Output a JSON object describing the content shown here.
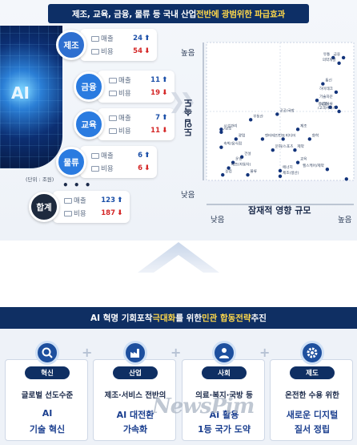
{
  "header": {
    "prefix": "제조, 교육, 금융, 물류 등 국내 산업 ",
    "highlight": "전반에 광범위한 파급효과"
  },
  "ai_image": {
    "label": "AI"
  },
  "colors": {
    "navy": "#0d2f66",
    "accent_yellow": "#ffd84a",
    "up": "#1b4fa8",
    "down": "#d42626"
  },
  "labels": {
    "sales": "매출",
    "cost": "비용"
  },
  "categories": [
    {
      "name": "제조",
      "color": "#2e6fd0",
      "sales": "24",
      "sales_dir": "⬆",
      "cost": "54",
      "cost_dir": "⬇"
    },
    {
      "name": "금융",
      "color": "#2a7be0",
      "sales": "11",
      "sales_dir": "⬆",
      "cost": "19",
      "cost_dir": "⬇"
    },
    {
      "name": "교육",
      "color": "#2a7be0",
      "sales": "7",
      "sales_dir": "⬆",
      "cost": "11",
      "cost_dir": "⬇"
    },
    {
      "name": "물류",
      "color": "#2a7be0",
      "sales": "6",
      "sales_dir": "⬆",
      "cost": "6",
      "cost_dir": "⬇"
    },
    {
      "name": "합계",
      "color": "#1e2a3e",
      "sales": "123",
      "sales_dir": "⬆",
      "cost": "187",
      "cost_dir": "⬇"
    }
  ],
  "unit_note": "(단위 : 조원)",
  "ellipsis": "• • •",
  "chart_data": {
    "type": "scatter",
    "xlabel": "잠재적 영향 규모",
    "ylabel": "도입 속도",
    "x_low": "낮음",
    "x_high": "높음",
    "y_low": "낮음",
    "y_high": "높음",
    "xlim": [
      0,
      10
    ],
    "ylim": [
      0,
      10
    ],
    "points": [
      {
        "label": "유통",
        "x": 8.6,
        "y": 8.9
      },
      {
        "label": "금융",
        "x": 9.3,
        "y": 8.9
      },
      {
        "label": "의약개발",
        "x": 9.0,
        "y": 8.5
      },
      {
        "label": "통신",
        "x": 7.9,
        "y": 7.0
      },
      {
        "label": "하이테크",
        "x": 8.8,
        "y": 6.4
      },
      {
        "label": "기술자문",
        "x": 7.5,
        "y": 5.8
      },
      {
        "label": "보험",
        "x": 8.4,
        "y": 5.3
      },
      {
        "label": "항공/물류",
        "x": 8.8,
        "y": 5.3
      },
      {
        "label": "/고객서비스",
        "x": 9.0,
        "y": 5.0
      },
      {
        "label": "공공/국방",
        "x": 4.8,
        "y": 4.8
      },
      {
        "label": "부동산",
        "x": 3.0,
        "y": 4.4
      },
      {
        "label": "시설관리",
        "x": 1.0,
        "y": 3.7
      },
      {
        "label": "/보조",
        "x": 1.0,
        "y": 3.5
      },
      {
        "label": "제조",
        "x": 6.2,
        "y": 3.7
      },
      {
        "label": "광업",
        "x": 2.0,
        "y": 3.0
      },
      {
        "label": "엔터테인먼트",
        "x": 3.8,
        "y": 3.0
      },
      {
        "label": "미디어",
        "x": 5.2,
        "y": 3.0
      },
      {
        "label": "화학",
        "x": 7.0,
        "y": 3.0
      },
      {
        "label": "숙박/음식점",
        "x": 1.0,
        "y": 2.4
      },
      {
        "label": "문화/스포츠",
        "x": 4.5,
        "y": 2.2
      },
      {
        "label": "제약",
        "x": 6.0,
        "y": 2.2
      },
      {
        "label": "건설",
        "x": 2.4,
        "y": 1.7
      },
      {
        "label": "교육",
        "x": 6.2,
        "y": 1.3
      },
      {
        "label": "운송",
        "x": 1.8,
        "y": 1.3
      },
      {
        "label": "제조(자동차)",
        "x": 1.5,
        "y": 0.9
      },
      {
        "label": "에너지",
        "x": 5.0,
        "y": 0.7
      },
      {
        "label": "헬스케어/제약",
        "x": 8.2,
        "y": 0.8
      },
      {
        "label": "농업",
        "x": 1.1,
        "y": 0.4
      },
      {
        "label": "물류",
        "x": 2.8,
        "y": 0.4
      },
      {
        "label": "제조(생산)",
        "x": 5.0,
        "y": 0.3
      },
      {
        "label": "",
        "x": 9.5,
        "y": 0.1
      }
    ]
  },
  "strategy": {
    "prefix": "AI 혁명 기회포착 ",
    "hl1": "극대화",
    "middle": "를 위한 ",
    "hl2": "민관 합동전략",
    "suffix": " 추진"
  },
  "cards": [
    {
      "tag": "혁신",
      "icon": "search-icon",
      "line1": "글로벌 선도수준",
      "line2": "AI",
      "line3": "기술 혁신"
    },
    {
      "tag": "산업",
      "icon": "factory-icon",
      "line1": "제조·서비스 전반의",
      "line2": "AI 대전환",
      "line3": "가속화"
    },
    {
      "tag": "사회",
      "icon": "people-icon",
      "line1": "의료·복지·국방 등",
      "line2": "AI 활용",
      "line3": "1등 국가 도약"
    },
    {
      "tag": "제도",
      "icon": "gear-icon",
      "line1": "온전한 수용 위한",
      "line2": "새로운 디지털",
      "line3": "질서 정립"
    }
  ],
  "watermark": "NewsPim"
}
